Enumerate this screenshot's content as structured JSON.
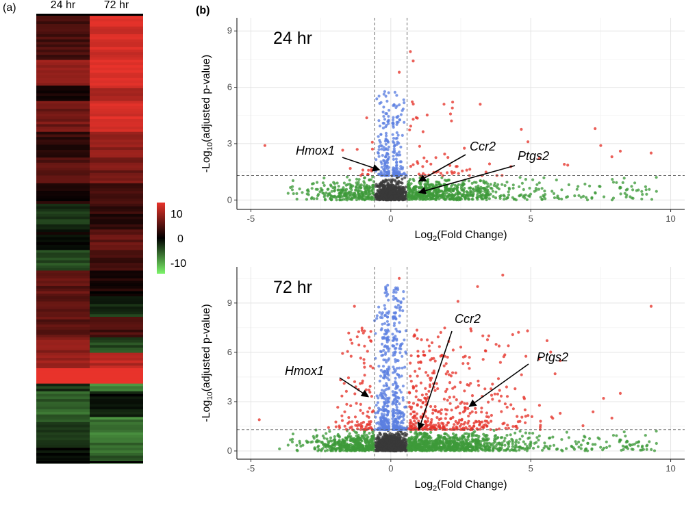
{
  "panel_a": {
    "label": "(a)",
    "columns": [
      "24 hr",
      "72 hr"
    ],
    "colorbar_ticks": [
      "10",
      "0",
      "-10"
    ],
    "colorbar_colors": {
      "high": "#e8332b",
      "mid": "#000000",
      "low": "#7cf46a"
    }
  },
  "panel_b": {
    "label": "(b)"
  },
  "colors": {
    "significant_up": "#e5332a",
    "significant_down": "#5b7fe0",
    "fold_only": "#3e9a3a",
    "not_significant": "#3a3a3a",
    "threshold_line": "#555555"
  },
  "chart_data": [
    {
      "type": "heatmap",
      "columns": [
        "24 hr",
        "72 hr"
      ],
      "color_range": [
        -10,
        10
      ],
      "bands": [
        {
          "rows": 18,
          "values": [
            3,
            9
          ]
        },
        {
          "rows": 10,
          "values": [
            6,
            10
          ]
        },
        {
          "rows": 6,
          "values": [
            1,
            8
          ]
        },
        {
          "rows": 12,
          "values": [
            5,
            9
          ]
        },
        {
          "rows": 10,
          "values": [
            2,
            6
          ]
        },
        {
          "rows": 10,
          "values": [
            4,
            5
          ]
        },
        {
          "rows": 8,
          "values": [
            1,
            3
          ]
        },
        {
          "rows": 10,
          "values": [
            -2,
            2
          ]
        },
        {
          "rows": 8,
          "values": [
            0,
            4
          ]
        },
        {
          "rows": 8,
          "values": [
            -3,
            3
          ]
        },
        {
          "rows": 10,
          "values": [
            4,
            1
          ]
        },
        {
          "rows": 8,
          "values": [
            4,
            -2
          ]
        },
        {
          "rows": 8,
          "values": [
            4,
            3
          ]
        },
        {
          "rows": 6,
          "values": [
            6,
            -3
          ]
        },
        {
          "rows": 6,
          "values": [
            7,
            8
          ]
        },
        {
          "rows": 6,
          "values": [
            13,
            13
          ]
        },
        {
          "rows": 3,
          "values": [
            -2,
            -6
          ]
        },
        {
          "rows": 10,
          "values": [
            -4,
            -1
          ]
        },
        {
          "rows": 10,
          "values": [
            -3,
            -5
          ]
        },
        {
          "rows": 8,
          "values": [
            -1,
            -4
          ]
        }
      ]
    },
    {
      "type": "scatter",
      "title": "24 hr",
      "xlabel": "Log2(Fold Change)",
      "ylabel": "-Log10(adjusted p-value)",
      "xlim": [
        -5.5,
        10.5
      ],
      "ylim": [
        -0.5,
        9.7
      ],
      "xticks": [
        -5,
        0,
        5,
        10
      ],
      "yticks": [
        0,
        3,
        6,
        9
      ],
      "grid": true,
      "thresholds": {
        "fold_change": [
          -0.58,
          0.58
        ],
        "p_value": 1.3
      },
      "highlighted_points": [
        {
          "x": 4.9,
          "y": 3.1
        },
        {
          "x": 5.3,
          "y": 2.2
        },
        {
          "x": 6.2,
          "y": 1.9
        },
        {
          "x": 7.3,
          "y": 3.8
        },
        {
          "x": 7.5,
          "y": 2.9
        },
        {
          "x": 7.9,
          "y": 2.3
        },
        {
          "x": 8.2,
          "y": 2.6
        },
        {
          "x": 9.3,
          "y": 2.5
        },
        {
          "x": -4.5,
          "y": 2.9
        },
        {
          "x": 0.7,
          "y": 7.9
        },
        {
          "x": 0.8,
          "y": 7.4
        },
        {
          "x": 2.2,
          "y": 4.9
        },
        {
          "x": 1.9,
          "y": 5.1
        },
        {
          "x": 0.3,
          "y": 6.8
        }
      ],
      "annotations": [
        {
          "text": "Hmox1",
          "x": -0.4,
          "y": 1.6
        },
        {
          "text": "Ccr2",
          "x": 1.0,
          "y": 1.0
        },
        {
          "text": "Ptgs2",
          "x": 1.0,
          "y": 0.4
        }
      ]
    },
    {
      "type": "scatter",
      "title": "72 hr",
      "xlabel": "Log2(Fold Change)",
      "ylabel": "-Log10(adjusted p-value)",
      "xlim": [
        -5.5,
        10.5
      ],
      "ylim": [
        -0.5,
        11.2
      ],
      "xticks": [
        -5,
        0,
        5,
        10
      ],
      "yticks": [
        0,
        3,
        6,
        9
      ],
      "grid": true,
      "thresholds": {
        "fold_change": [
          -0.58,
          0.58
        ],
        "p_value": 1.3
      },
      "highlighted_points": [
        {
          "x": 4.0,
          "y": 10.7
        },
        {
          "x": 9.3,
          "y": 8.8
        },
        {
          "x": 3.1,
          "y": 10.0
        },
        {
          "x": 2.4,
          "y": 9.1
        },
        {
          "x": 3.5,
          "y": 7.0
        },
        {
          "x": 4.2,
          "y": 6.4
        },
        {
          "x": 5.3,
          "y": 5.6
        },
        {
          "x": 7.6,
          "y": 3.2
        },
        {
          "x": 8.2,
          "y": 3.5
        },
        {
          "x": 7.9,
          "y": 2.0
        },
        {
          "x": -1.3,
          "y": 8.8
        },
        {
          "x": -4.7,
          "y": 1.9
        },
        {
          "x": 0.3,
          "y": 10.5
        }
      ],
      "annotations": [
        {
          "text": "Hmox1",
          "x": -0.8,
          "y": 3.3
        },
        {
          "text": "Ccr2",
          "x": 1.0,
          "y": 1.3
        },
        {
          "text": "Ptgs2",
          "x": 2.8,
          "y": 2.7
        }
      ]
    }
  ]
}
